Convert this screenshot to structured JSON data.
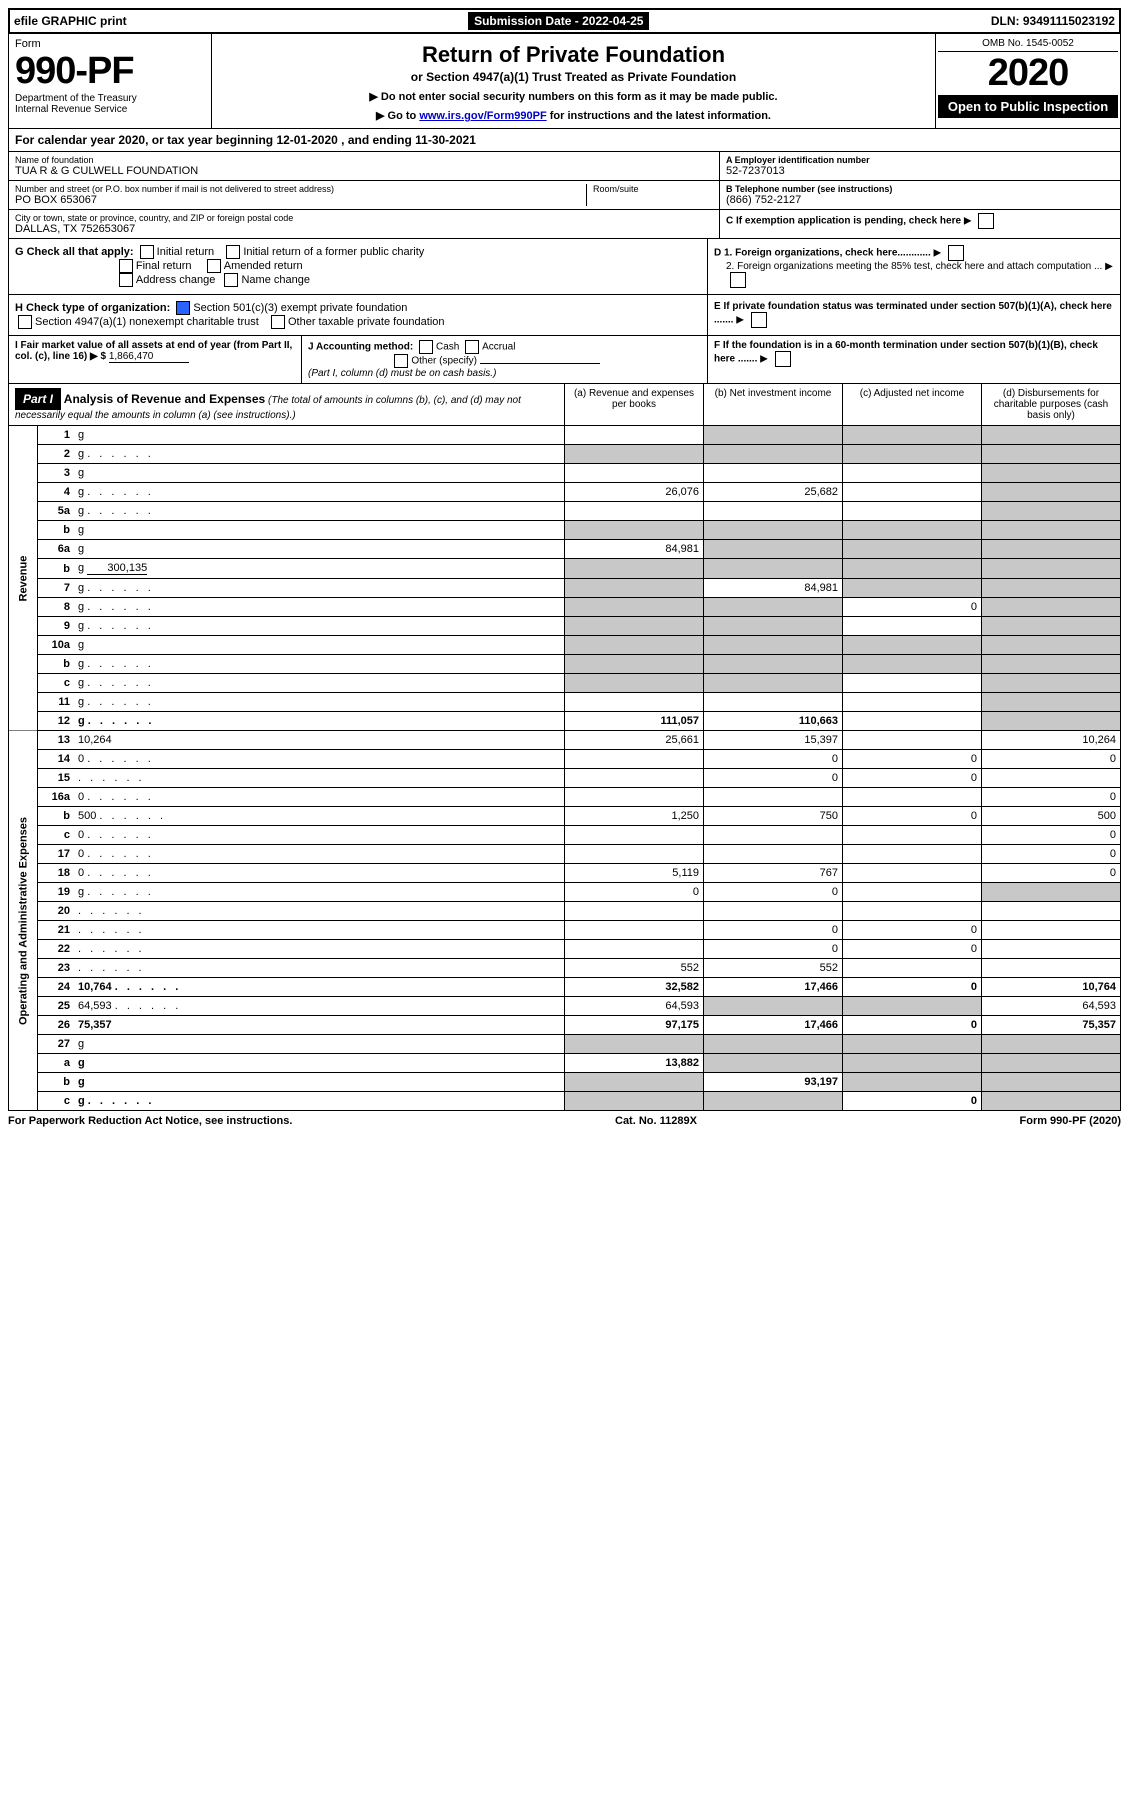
{
  "topbar": {
    "efile": "efile GRAPHIC print",
    "sub_label": "Submission Date - 2022-04-25",
    "dln": "DLN: 93491115023192"
  },
  "header": {
    "form_label": "Form",
    "form_number": "990-PF",
    "dept1": "Department of the Treasury",
    "dept2": "Internal Revenue Service",
    "title": "Return of Private Foundation",
    "subtitle": "or Section 4947(a)(1) Trust Treated as Private Foundation",
    "instr1": "▶ Do not enter social security numbers on this form as it may be made public.",
    "instr2_pre": "▶ Go to ",
    "instr2_link": "www.irs.gov/Form990PF",
    "instr2_post": " for instructions and the latest information.",
    "omb": "OMB No. 1545-0052",
    "year": "2020",
    "open": "Open to Public Inspection"
  },
  "fy": "For calendar year 2020, or tax year beginning 12-01-2020               , and ending 11-30-2021",
  "id": {
    "name_label": "Name of foundation",
    "name": "TUA R & G CULWELL FOUNDATION",
    "addr_label": "Number and street (or P.O. box number if mail is not delivered to street address)",
    "room_label": "Room/suite",
    "addr": "PO BOX 653067",
    "city_label": "City or town, state or province, country, and ZIP or foreign postal code",
    "city": "DALLAS, TX  752653067",
    "ein_label": "A Employer identification number",
    "ein": "52-7237013",
    "phone_label": "B Telephone number (see instructions)",
    "phone": "(866) 752-2127",
    "c_label": "C If exemption application is pending, check here",
    "d1": "D 1. Foreign organizations, check here............",
    "d2": "2. Foreign organizations meeting the 85% test, check here and attach computation ...",
    "e": "E  If private foundation status was terminated under section 507(b)(1)(A), check here .......",
    "f": "F  If the foundation is in a 60-month termination under section 507(b)(1)(B), check here .......",
    "g": "G Check all that apply:",
    "g_opts": [
      "Initial return",
      "Initial return of a former public charity",
      "Final return",
      "Amended return",
      "Address change",
      "Name change"
    ],
    "h": "H Check type of organization:",
    "h_opts": [
      "Section 501(c)(3) exempt private foundation",
      "Section 4947(a)(1) nonexempt charitable trust",
      "Other taxable private foundation"
    ],
    "i_label": "I Fair market value of all assets at end of year (from Part II, col. (c), line 16) ▶ $",
    "i_val": "1,866,470",
    "j": "J Accounting method:",
    "j_opts": [
      "Cash",
      "Accrual",
      "Other (specify)"
    ],
    "j_note": "(Part I, column (d) must be on cash basis.)"
  },
  "part1": {
    "header": "Part I",
    "title": "Analysis of Revenue and Expenses",
    "note": "(The total of amounts in columns (b), (c), and (d) may not necessarily equal the amounts in column (a) (see instructions).)",
    "cols": {
      "a": "(a) Revenue and expenses per books",
      "b": "(b) Net investment income",
      "c": "(c) Adjusted net income",
      "d": "(d) Disbursements for charitable purposes (cash basis only)"
    }
  },
  "sections": {
    "revenue": "Revenue",
    "opex": "Operating and Administrative Expenses"
  },
  "lines": [
    {
      "n": "1",
      "d": "g",
      "a": "",
      "b": "g",
      "c": "g"
    },
    {
      "n": "2",
      "d": "g",
      "a": "g",
      "b": "g",
      "c": "g",
      "dots": true
    },
    {
      "n": "3",
      "d": "g",
      "a": "",
      "b": "",
      "c": ""
    },
    {
      "n": "4",
      "d": "g",
      "a": "26,076",
      "b": "25,682",
      "c": "",
      "dots": true
    },
    {
      "n": "5a",
      "d": "g",
      "a": "",
      "b": "",
      "c": "",
      "dots": true
    },
    {
      "n": "b",
      "d": "g",
      "a": "g",
      "b": "g",
      "c": "g",
      "inset": true
    },
    {
      "n": "6a",
      "d": "g",
      "a": "84,981",
      "b": "g",
      "c": "g"
    },
    {
      "n": "b",
      "d": "g",
      "a": "g",
      "b": "g",
      "c": "g",
      "inset": true,
      "inline_val": "300,135"
    },
    {
      "n": "7",
      "d": "g",
      "a": "g",
      "b": "84,981",
      "c": "g",
      "dots": true
    },
    {
      "n": "8",
      "d": "g",
      "a": "g",
      "b": "g",
      "c": "0",
      "dots": true
    },
    {
      "n": "9",
      "d": "g",
      "a": "g",
      "b": "g",
      "c": "",
      "dots": true
    },
    {
      "n": "10a",
      "d": "g",
      "a": "g",
      "b": "g",
      "c": "g",
      "inset": true
    },
    {
      "n": "b",
      "d": "g",
      "a": "g",
      "b": "g",
      "c": "g",
      "inset": true,
      "dots": true
    },
    {
      "n": "c",
      "d": "g",
      "a": "g",
      "b": "g",
      "c": "",
      "dots": true
    },
    {
      "n": "11",
      "d": "g",
      "a": "",
      "b": "",
      "c": "",
      "dots": true
    },
    {
      "n": "12",
      "d": "g",
      "a": "111,057",
      "b": "110,663",
      "c": "",
      "bold": true,
      "dots": true
    }
  ],
  "oplines": [
    {
      "n": "13",
      "d": "10,264",
      "a": "25,661",
      "b": "15,397",
      "c": ""
    },
    {
      "n": "14",
      "d": "0",
      "a": "",
      "b": "0",
      "c": "0",
      "dots": true
    },
    {
      "n": "15",
      "d": "",
      "a": "",
      "b": "0",
      "c": "0",
      "dots": true
    },
    {
      "n": "16a",
      "d": "0",
      "a": "",
      "b": "",
      "c": "",
      "dots": true
    },
    {
      "n": "b",
      "d": "500",
      "a": "1,250",
      "b": "750",
      "c": "0",
      "dots": true
    },
    {
      "n": "c",
      "d": "0",
      "a": "",
      "b": "",
      "c": "",
      "dots": true
    },
    {
      "n": "17",
      "d": "0",
      "a": "",
      "b": "",
      "c": "",
      "dots": true
    },
    {
      "n": "18",
      "d": "0",
      "a": "5,119",
      "b": "767",
      "c": "",
      "dots": true
    },
    {
      "n": "19",
      "d": "g",
      "a": "0",
      "b": "0",
      "c": "",
      "dots": true
    },
    {
      "n": "20",
      "d": "",
      "a": "",
      "b": "",
      "c": "",
      "dots": true
    },
    {
      "n": "21",
      "d": "",
      "a": "",
      "b": "0",
      "c": "0",
      "dots": true
    },
    {
      "n": "22",
      "d": "",
      "a": "",
      "b": "0",
      "c": "0",
      "dots": true
    },
    {
      "n": "23",
      "d": "",
      "a": "552",
      "b": "552",
      "c": "",
      "dots": true
    },
    {
      "n": "24",
      "d": "10,764",
      "a": "32,582",
      "b": "17,466",
      "c": "0",
      "bold": true,
      "dots": true
    },
    {
      "n": "25",
      "d": "64,593",
      "a": "64,593",
      "b": "g",
      "c": "g",
      "dots": true
    },
    {
      "n": "26",
      "d": "75,357",
      "a": "97,175",
      "b": "17,466",
      "c": "0",
      "bold": true
    },
    {
      "n": "27",
      "d": "g",
      "a": "g",
      "b": "g",
      "c": "g"
    },
    {
      "n": "a",
      "d": "g",
      "a": "13,882",
      "b": "g",
      "c": "g",
      "bold": true
    },
    {
      "n": "b",
      "d": "g",
      "a": "g",
      "b": "93,197",
      "c": "g",
      "bold": true
    },
    {
      "n": "c",
      "d": "g",
      "a": "g",
      "b": "g",
      "c": "0",
      "bold": true,
      "dots": true
    }
  ],
  "footer": {
    "left": "For Paperwork Reduction Act Notice, see instructions.",
    "mid": "Cat. No. 11289X",
    "right": "Form 990-PF (2020)"
  }
}
